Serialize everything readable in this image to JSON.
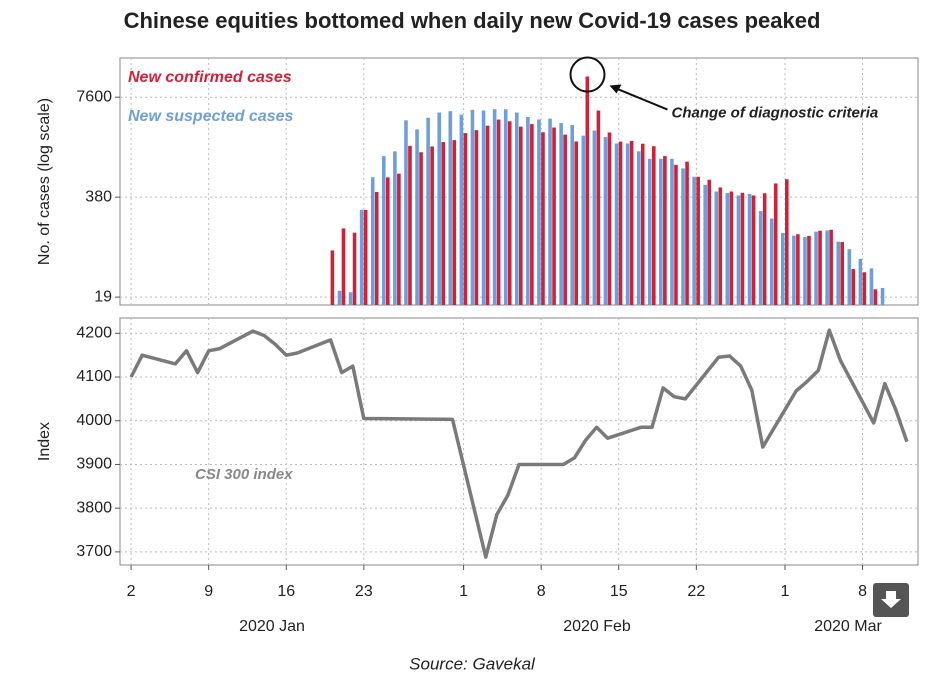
{
  "source": "Source: Gavekal",
  "chart_data": [
    {
      "type": "bar",
      "title": "Chinese equities bottomed when daily new Covid-19 cases peaked",
      "ylabel": "No. of cases (log scale)",
      "log_scale": true,
      "grid": true,
      "ylim": [
        15,
        24600
      ],
      "yticks": [
        19,
        380,
        7600
      ],
      "xlim": [
        "2020-01-01",
        "2020-03-13"
      ],
      "annotations": [
        "Change of diagnostic criteria"
      ],
      "x": [
        "2020-01-20",
        "2020-01-21",
        "2020-01-22",
        "2020-01-23",
        "2020-01-24",
        "2020-01-25",
        "2020-01-26",
        "2020-01-27",
        "2020-01-28",
        "2020-01-29",
        "2020-01-30",
        "2020-01-31",
        "2020-02-01",
        "2020-02-02",
        "2020-02-03",
        "2020-02-04",
        "2020-02-05",
        "2020-02-06",
        "2020-02-07",
        "2020-02-08",
        "2020-02-09",
        "2020-02-10",
        "2020-02-11",
        "2020-02-12",
        "2020-02-13",
        "2020-02-14",
        "2020-02-15",
        "2020-02-16",
        "2020-02-17",
        "2020-02-18",
        "2020-02-19",
        "2020-02-20",
        "2020-02-21",
        "2020-02-22",
        "2020-02-23",
        "2020-02-24",
        "2020-02-25",
        "2020-02-26",
        "2020-02-27",
        "2020-02-28",
        "2020-02-29",
        "2020-03-01",
        "2020-03-02",
        "2020-03-03",
        "2020-03-04",
        "2020-03-05",
        "2020-03-06",
        "2020-03-07",
        "2020-03-08",
        "2020-03-09",
        "2020-03-10"
      ],
      "series": [
        {
          "name": "New confirmed cases",
          "color": "#d0213a",
          "values": [
            77,
            149,
            131,
            259,
            444,
            688,
            769,
            1771,
            1459,
            1737,
            1981,
            2099,
            2590,
            2829,
            3235,
            3887,
            3694,
            3143,
            3399,
            2656,
            3062,
            2478,
            2015,
            14108,
            5090,
            2641,
            2009,
            2048,
            1886,
            1749,
            1300,
            1000,
            1100,
            700,
            640,
            508,
            450,
            433,
            400,
            427,
            573,
            650,
            125,
            119,
            139,
            143,
            99,
            44,
            40,
            24,
            null
          ]
        },
        {
          "name": "New suspected cases",
          "color": "#6f9fd8",
          "values": [
            null,
            23,
            22,
            260,
            690,
            1300,
            1500,
            3800,
            2900,
            4100,
            4800,
            5000,
            4500,
            5200,
            5100,
            5300,
            5300,
            4800,
            4200,
            3900,
            4000,
            3500,
            3300,
            2400,
            2800,
            2300,
            1900,
            1900,
            1500,
            1200,
            1200,
            1200,
            900,
            700,
            550,
            450,
            430,
            400,
            420,
            250,
            200,
            130,
            120,
            115,
            135,
            140,
            100,
            80,
            60,
            45,
            25
          ]
        }
      ]
    },
    {
      "type": "line",
      "ylabel": "Index",
      "grid": true,
      "ylim": [
        3670,
        4235
      ],
      "yticks": [
        3700,
        3800,
        3900,
        4000,
        4100,
        4200
      ],
      "xlim": [
        "2020-01-01",
        "2020-03-13"
      ],
      "xticks": [
        {
          "value": "2020-01-02",
          "label": "2"
        },
        {
          "value": "2020-01-09",
          "label": "9"
        },
        {
          "value": "2020-01-16",
          "label": "16"
        },
        {
          "value": "2020-01-23",
          "label": "23"
        },
        {
          "value": "2020-02-01",
          "label": "1"
        },
        {
          "value": "2020-02-08",
          "label": "8"
        },
        {
          "value": "2020-02-15",
          "label": "15"
        },
        {
          "value": "2020-02-22",
          "label": "22"
        },
        {
          "value": "2020-03-01",
          "label": "1"
        },
        {
          "value": "2020-03-08",
          "label": "8"
        }
      ],
      "x_group_labels": [
        "2020 Jan",
        "2020 Feb",
        "2020 Mar"
      ],
      "x": [
        "2020-01-02",
        "2020-01-03",
        "2020-01-06",
        "2020-01-07",
        "2020-01-08",
        "2020-01-09",
        "2020-01-10",
        "2020-01-13",
        "2020-01-14",
        "2020-01-15",
        "2020-01-16",
        "2020-01-17",
        "2020-01-20",
        "2020-01-21",
        "2020-01-22",
        "2020-01-23",
        "2020-01-31",
        "2020-02-03",
        "2020-02-04",
        "2020-02-05",
        "2020-02-06",
        "2020-02-07",
        "2020-02-10",
        "2020-02-11",
        "2020-02-12",
        "2020-02-13",
        "2020-02-14",
        "2020-02-17",
        "2020-02-18",
        "2020-02-19",
        "2020-02-20",
        "2020-02-21",
        "2020-02-24",
        "2020-02-25",
        "2020-02-26",
        "2020-02-27",
        "2020-02-28",
        "2020-03-02",
        "2020-03-03",
        "2020-03-04",
        "2020-03-05",
        "2020-03-06",
        "2020-03-09",
        "2020-03-10",
        "2020-03-11",
        "2020-03-12"
      ],
      "series": [
        {
          "name": "CSI 300 index",
          "color": "#7a7a7a",
          "values": [
            4100,
            4150,
            4130,
            4160,
            4110,
            4160,
            4165,
            4205,
            4195,
            4175,
            4150,
            4155,
            4185,
            4110,
            4125,
            4005,
            4003,
            3688,
            3785,
            3830,
            3900,
            3900,
            3900,
            3915,
            3955,
            3985,
            3960,
            3985,
            3985,
            4075,
            4055,
            4050,
            4145,
            4148,
            4125,
            4070,
            3940,
            4068,
            4090,
            4115,
            4207,
            4138,
            3995,
            4085,
            4025,
            3952
          ]
        }
      ]
    }
  ]
}
